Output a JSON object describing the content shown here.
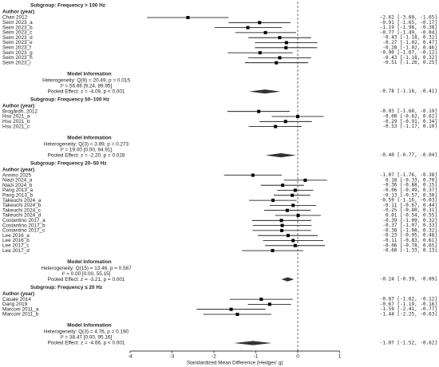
{
  "chart_data": {
    "type": "forest",
    "x_label": "Standardized Mean Difference (Hedges' g)",
    "xlim": [
      -4.2,
      1.2
    ],
    "xticks": [
      -4,
      -3,
      -2,
      -1,
      0,
      1
    ],
    "reference_line": 0,
    "column_header": "Author (year)",
    "model_header": "Model Information",
    "subgroups": [
      {
        "title": "Subgroup: Frequency > 100 Hz",
        "studies": [
          {
            "name": "Chan 2012",
            "value": -2.62,
            "ci": [
              -3.6,
              -1.65
            ],
            "label": "-2.62 [-3.60, -1.65]"
          },
          {
            "name": "Seim 2023_a",
            "value": -0.91,
            "ci": [
              -1.65,
              -0.17
            ],
            "label": "-0.91 [-1.65, -0.17]"
          },
          {
            "name": "Seim 2023_b",
            "value": -1.19,
            "ge": null,
            "ci": [
              -1.98,
              -0.38
            ],
            "label": "-1.19 [-1.98, -0.38]"
          },
          {
            "name": "Seim 2023_c",
            "value": -0.77,
            "ci": [
              -1.49,
              -0.04
            ],
            "label": "-0.77 [-1.49, -0.04]"
          },
          {
            "name": "Seim 2023_d",
            "value": -0.43,
            "ci": [
              -1.18,
              0.32
            ],
            "label": "-0.43 [-1.18, 0.32]"
          },
          {
            "name": "Seim 2023_e",
            "value": -0.27,
            "ci": [
              -1.02,
              0.47
            ],
            "label": "-0.27 [-1.02, 0.47]"
          },
          {
            "name": "Seim 2023_f",
            "value": -0.28,
            "ci": [
              -1.02,
              0.46
            ],
            "label": "-0.28 [-1.02, 0.46]"
          },
          {
            "name": "Seim 2023_g",
            "value": -0.9,
            "ci": [
              -1.67,
              -0.12
            ],
            "label": "-0.90 [-1.67, -0.12]"
          },
          {
            "name": "Seim 2023_h",
            "value": -0.43,
            "ci": [
              -1.18,
              0.32
            ],
            "label": "-0.43 [-1.18, 0.32]"
          },
          {
            "name": "Seim 2023_i",
            "value": -0.51,
            "ci": [
              -1.26,
              0.25
            ],
            "label": "-0.51 [-1.26, 0.25]"
          }
        ],
        "heterogeneity": "Heterogeneity: Q(9) = 20.49, p = 0.015",
        "i2": "I² = 56.66 [9.24, 89.95]",
        "pooled_text": "Pooled Effect: z = -4.09, p < 0.001",
        "pooled": {
          "value": -0.78,
          "ci": [
            -1.16,
            -0.41
          ],
          "label": "-0.78 [-1.16, -0.41]"
        }
      },
      {
        "title": "Subgroup: Frequency 50–100 Hz",
        "studies": [
          {
            "name": "Brogårdh, 2012",
            "value": -0.93,
            "ci": [
              -1.68,
              -0.19
            ],
            "label": "-0.93 [-1.68, -0.19]"
          },
          {
            "name": "Hsu 2021_a",
            "value": -0.0,
            "ci": [
              -0.62,
              0.62
            ],
            "label": "-0.00 [-0.62, 0.62]"
          },
          {
            "name": "Hsu 2021_b",
            "value": -0.29,
            "ci": [
              -0.91,
              0.34
            ],
            "label": "-0.29 [-0.91, 0.34]"
          },
          {
            "name": "Hsu 2021_c",
            "value": -0.53,
            "ci": [
              -1.17,
              0.1
            ],
            "label": "-0.53 [-1.17, 0.10]"
          }
        ],
        "heterogeneity": "Heterogeneity: Q(3) = 3.89, p = 0.273",
        "i2": "I² = 19.00 [0.00, 94.91]",
        "pooled_text": "Pooled Effect: z = -2.20, p = 0.028",
        "pooled": {
          "value": -0.4,
          "ci": [
            -0.77,
            -0.04
          ],
          "label": "-0.40 [-0.77, -0.04]"
        }
      },
      {
        "title": "Subgroup: Frequency 20–50 Hz",
        "studies": [
          {
            "name": "Annino 2025",
            "value": -1.07,
            "ci": [
              -1.76,
              -0.38
            ],
            "label": "-1.07 [-1.76, -0.38]"
          },
          {
            "name": "Niazi 2024_a",
            "value": 0.18,
            "ci": [
              -0.33,
              0.7
            ],
            "label": "0.18 [-0.33, 0.70]"
          },
          {
            "name": "Niazi 2024_b",
            "value": -0.36,
            "ci": [
              -0.88,
              0.15
            ],
            "label": "-0.36 [-0.88, 0.15]"
          },
          {
            "name": "Pang 2013_a",
            "value": -0.06,
            "ci": [
              -0.49,
              0.37
            ],
            "label": "-0.06 [-0.49, 0.37]"
          },
          {
            "name": "Pang 2013_b",
            "value": -0.13,
            "ci": [
              -0.57,
              0.3
            ],
            "label": "-0.13 [-0.57, 0.30]"
          },
          {
            "name": "Takeuchi 2024_a",
            "value": -0.59,
            "ci": [
              -1.16,
              -0.03
            ],
            "label": "-0.59 [-1.16, -0.03]"
          },
          {
            "name": "Takeuchi 2024_b",
            "value": -0.11,
            "ci": [
              -0.67,
              0.44
            ],
            "label": "-0.11 [-0.67, 0.44]"
          },
          {
            "name": "Takeuchi 2024_c",
            "value": -0.25,
            "ci": [
              -0.8,
              0.31
            ],
            "label": "-0.25 [-0.80, 0.31]"
          },
          {
            "name": "Takeuchi 2024_d",
            "value": 0.01,
            "ci": [
              -0.54,
              0.55
            ],
            "label": "0.01 [-0.54, 0.55]"
          },
          {
            "name": "Costantino 2017_a",
            "value": -0.39,
            "ci": [
              -1.09,
              0.32
            ],
            "label": "-0.39 [-1.09, 0.32]"
          },
          {
            "name": "Costantino 2017_b",
            "value": -0.37,
            "ci": [
              -1.07,
              0.33
            ],
            "label": "-0.37 [-1.07, 0.33]"
          },
          {
            "name": "Costantino 2017_c",
            "value": -0.38,
            "ci": [
              -1.08,
              0.32
            ],
            "label": "-0.38 [-1.08, 0.32]"
          },
          {
            "name": "Lee 2016_a",
            "value": -0.23,
            "ci": [
              -0.95,
              0.48
            ],
            "label": "-0.23 [-0.95, 0.48]"
          },
          {
            "name": "Lee 2016_b",
            "value": -0.11,
            "ci": [
              -0.83,
              0.61
            ],
            "label": "-0.11 [-0.83, 0.61]"
          },
          {
            "name": "Lee 2017_c",
            "value": -0.06,
            "ci": [
              -0.78,
              0.65
            ],
            "label": "-0.06 [-0.78, 0.65]"
          },
          {
            "name": "Lee 2017_d",
            "value": -0.6,
            "ci": [
              -1.33,
              0.13
            ],
            "label": "-0.60 [-1.33, 0.13]"
          }
        ],
        "heterogeneity": "Heterogeneity: Q(15) = 13.46, p = 0.567",
        "i2": "I² = 0.00 [0.00, 55.15]",
        "pooled_text": "Pooled Effect: z = -3.21, p = 0.001",
        "pooled": {
          "value": -0.24,
          "ci": [
            -0.39,
            -0.09
          ],
          "label": "-0.24 [-0.39, -0.09]"
        }
      },
      {
        "title": "Subgroup: Frequency ≤ 20 Hz",
        "studies": [
          {
            "name": "Casale 2014",
            "value": -0.87,
            "ci": [
              -1.62,
              -0.12
            ],
            "label": "-0.87 [-1.62, -0.12]"
          },
          {
            "name": "Dang 2019",
            "value": -0.67,
            "ci": [
              -1.19,
              -0.16
            ],
            "label": "-0.67 [-1.19, -0.16]"
          },
          {
            "name": "Marconi 2011_a",
            "value": -1.59,
            "ci": [
              -2.41,
              -0.77
            ],
            "label": "-1.59 [-2.41, -0.77]"
          },
          {
            "name": "Marconi 2011_b",
            "value": -1.44,
            "ci": [
              -2.25,
              -0.63
            ],
            "label": "-1.44 [-2.25, -0.63]"
          }
        ],
        "heterogeneity": "Heterogeneity: Q(3) = 4.76, p = 0.190",
        "i2": "I² = 38.47 [0.00, 95.16]",
        "pooled_text": "Pooled Effect: z = -4.66, p < 0.001",
        "pooled": {
          "value": -1.07,
          "ci": [
            -1.52,
            -0.62
          ],
          "label": "-1.07 [-1.52, -0.62]"
        }
      }
    ]
  }
}
